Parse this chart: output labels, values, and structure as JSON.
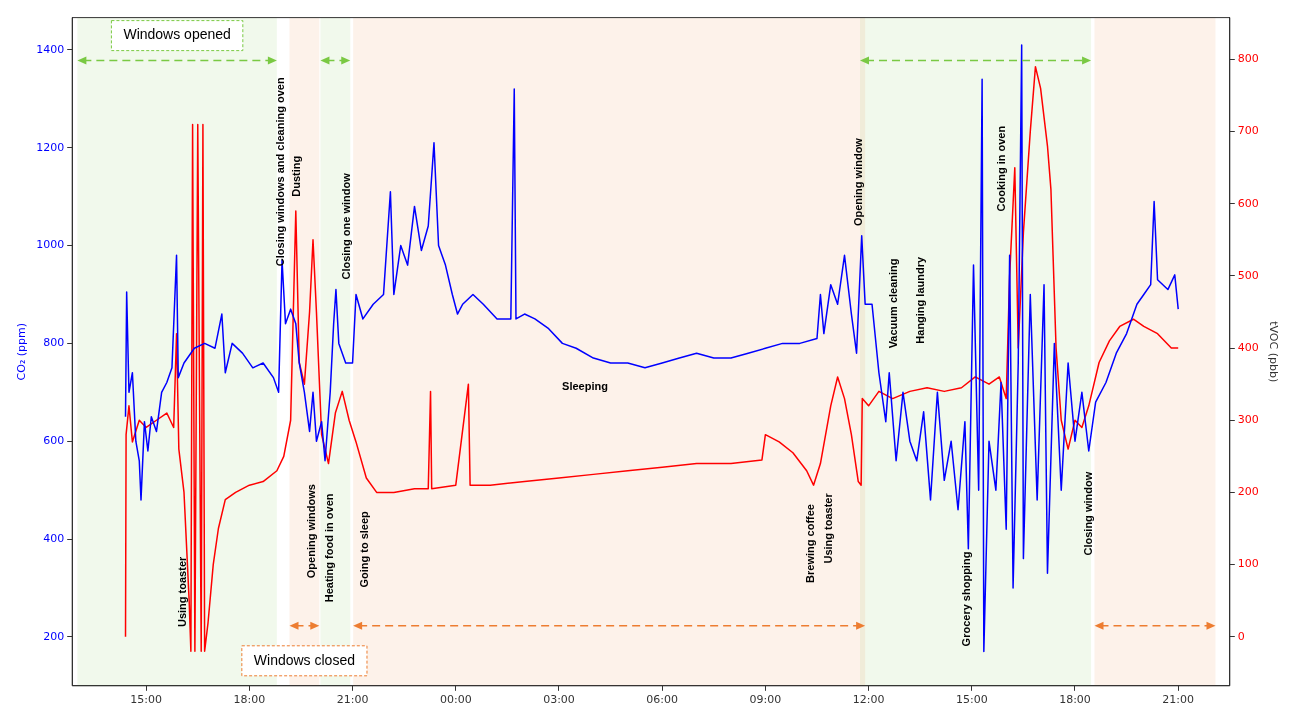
{
  "chart_data": {
    "type": "line",
    "ylabel": "CO₂ (ppm)",
    "y2label": "tVOC (pbb)",
    "xlim": [
      "--01-01T12:51",
      "--01-02T22:30"
    ],
    "xticks": [
      {
        "value": "--01-01T15:00",
        "label": "15:00"
      },
      {
        "value": "--01-01T18:00",
        "label": "18:00"
      },
      {
        "value": "--01-01T21:00",
        "label": "21:00"
      },
      {
        "value": "--01-02T00:00",
        "label": "00:00"
      },
      {
        "value": "--01-02T03:00",
        "label": "03:00"
      },
      {
        "value": "--01-02T06:00",
        "label": "06:00"
      },
      {
        "value": "--01-02T09:00",
        "label": "09:00"
      },
      {
        "value": "--01-02T12:00",
        "label": "12:00"
      },
      {
        "value": "--01-02T15:00",
        "label": "15:00"
      },
      {
        "value": "--01-02T18:00",
        "label": "18:00"
      },
      {
        "value": "--01-02T21:00",
        "label": "21:00"
      }
    ],
    "ylim": [
      100,
      1466
    ],
    "yticks": [
      200,
      400,
      600,
      800,
      1000,
      1200,
      1400
    ],
    "y2lim": [
      -68,
      858
    ],
    "y2ticks": [
      0,
      100,
      200,
      300,
      400,
      500,
      600,
      700,
      800
    ],
    "grid": false,
    "legend": false,
    "series": [
      {
        "color": "#0000ff",
        "x": [
          "--01-01T14:24",
          "--01-01T14:26",
          "--01-01T14:30",
          "--01-01T14:36",
          "--01-01T14:42",
          "--01-01T14:48",
          "--01-01T14:51",
          "--01-01T14:57",
          "--01-01T15:03",
          "--01-01T15:09",
          "--01-01T15:18",
          "--01-01T15:27",
          "--01-01T15:36",
          "--01-01T15:45",
          "--01-01T15:53",
          "--01-01T15:56",
          "--01-01T16:06",
          "--01-01T16:24",
          "--01-01T16:42",
          "--01-01T17:00",
          "--01-01T17:12",
          "--01-01T17:18",
          "--01-01T17:30",
          "--01-01T17:48",
          "--01-01T18:06",
          "--01-01T18:24",
          "--01-01T18:42",
          "--01-01T18:51",
          "--01-01T18:57",
          "--01-01T19:03",
          "--01-01T19:12",
          "--01-01T19:21",
          "--01-01T19:27",
          "--01-01T19:36",
          "--01-01T19:45",
          "--01-01T19:51",
          "--01-01T19:57",
          "--01-01T20:06",
          "--01-01T20:12",
          "--01-01T20:21",
          "--01-01T20:27",
          "--01-01T20:31",
          "--01-01T20:36",
          "--01-01T20:48",
          "--01-01T21:00",
          "--01-01T21:06",
          "--01-01T21:18",
          "--01-01T21:36",
          "--01-01T21:54",
          "--01-01T22:06",
          "--01-01T22:12",
          "--01-01T22:24",
          "--01-01T22:36",
          "--01-01T22:48",
          "--01-01T23:00",
          "--01-01T23:12",
          "--01-01T23:22",
          "--01-01T23:30",
          "--01-01T23:42",
          "--01-01T23:54",
          "--01-02T00:03",
          "--01-02T00:12",
          "--01-02T00:30",
          "--01-02T00:48",
          "--01-02T01:12",
          "--01-02T01:36",
          "--01-02T01:42",
          "--01-02T01:45",
          "--01-02T02:00",
          "--01-02T02:18",
          "--01-02T02:42",
          "--01-02T03:06",
          "--01-02T03:30",
          "--01-02T04:00",
          "--01-02T04:30",
          "--01-02T05:00",
          "--01-02T05:30",
          "--01-02T06:00",
          "--01-02T06:30",
          "--01-02T07:00",
          "--01-02T07:30",
          "--01-02T08:00",
          "--01-02T08:30",
          "--01-02T09:00",
          "--01-02T09:30",
          "--01-02T10:00",
          "--01-02T10:30",
          "--01-02T10:36",
          "--01-02T10:42",
          "--01-02T10:54",
          "--01-02T11:06",
          "--01-02T11:18",
          "--01-02T11:30",
          "--01-02T11:39",
          "--01-02T11:48",
          "--01-02T11:54",
          "--01-02T12:06",
          "--01-02T12:18",
          "--01-02T12:30",
          "--01-02T12:36",
          "--01-02T12:48",
          "--01-02T13:00",
          "--01-02T13:12",
          "--01-02T13:24",
          "--01-02T13:36",
          "--01-02T13:48",
          "--01-02T14:00",
          "--01-02T14:12",
          "--01-02T14:24",
          "--01-02T14:36",
          "--01-02T14:48",
          "--01-02T14:54",
          "--01-02T15:03",
          "--01-02T15:12",
          "--01-02T15:18",
          "--01-02T15:21",
          "--01-02T15:30",
          "--01-02T15:42",
          "--01-02T15:51",
          "--01-02T16:00",
          "--01-02T16:06",
          "--01-02T16:12",
          "--01-02T16:21",
          "--01-02T16:27",
          "--01-02T16:30",
          "--01-02T16:42",
          "--01-02T16:54",
          "--01-02T17:06",
          "--01-02T17:12",
          "--01-02T17:24",
          "--01-02T17:36",
          "--01-02T17:48",
          "--01-02T18:00",
          "--01-02T18:12",
          "--01-02T18:24",
          "--01-02T18:36",
          "--01-02T18:54",
          "--01-02T19:12",
          "--01-02T19:30",
          "--01-02T19:48",
          "--01-02T20:00",
          "--01-02T20:12",
          "--01-02T20:18",
          "--01-02T20:24",
          "--01-02T20:42",
          "--01-02T20:54",
          "--01-02T21:00"
        ],
        "values": [
          650,
          905,
          700,
          740,
          600,
          560,
          480,
          640,
          580,
          650,
          620,
          700,
          720,
          750,
          980,
          730,
          760,
          790,
          800,
          790,
          860,
          740,
          800,
          780,
          750,
          760,
          730,
          700,
          970,
          840,
          870,
          840,
          760,
          700,
          620,
          700,
          600,
          640,
          560,
          700,
          840,
          910,
          800,
          760,
          760,
          900,
          850,
          880,
          900,
          1110,
          900,
          1000,
          960,
          1080,
          990,
          1040,
          1210,
          1000,
          960,
          900,
          860,
          880,
          900,
          880,
          850,
          850,
          1320,
          850,
          860,
          850,
          830,
          800,
          790,
          770,
          760,
          760,
          750,
          760,
          770,
          780,
          770,
          770,
          780,
          790,
          800,
          800,
          810,
          900,
          820,
          920,
          880,
          980,
          860,
          780,
          1020,
          880,
          880,
          740,
          640,
          740,
          560,
          700,
          600,
          560,
          660,
          480,
          700,
          520,
          600,
          460,
          640,
          380,
          960,
          500,
          1340,
          170,
          600,
          500,
          720,
          420,
          980,
          300,
          760,
          1410,
          360,
          900,
          480,
          920,
          330,
          800,
          500,
          760,
          600,
          700,
          580,
          680,
          720,
          780,
          820,
          880,
          900,
          920,
          1090,
          930,
          910,
          940,
          870
        ]
      },
      {
        "color": "#ff0000",
        "axis": "y2",
        "x": [
          "--01-01T14:24",
          "--01-01T14:25",
          "--01-01T14:30",
          "--01-01T14:36",
          "--01-01T14:48",
          "--01-01T15:00",
          "--01-01T15:18",
          "--01-01T15:36",
          "--01-01T15:48",
          "--01-01T15:53",
          "--01-01T15:57",
          "--01-01T16:06",
          "--01-01T16:15",
          "--01-01T16:18",
          "--01-01T16:21",
          "--01-01T16:25",
          "--01-01T16:30",
          "--01-01T16:36",
          "--01-01T16:39",
          "--01-01T16:42",
          "--01-01T16:48",
          "--01-01T16:57",
          "--01-01T17:06",
          "--01-01T17:18",
          "--01-01T17:36",
          "--01-01T18:00",
          "--01-01T18:24",
          "--01-01T18:48",
          "--01-01T19:00",
          "--01-01T19:12",
          "--01-01T19:21",
          "--01-01T19:27",
          "--01-01T19:36",
          "--01-01T19:45",
          "--01-01T19:51",
          "--01-01T19:57",
          "--01-01T20:06",
          "--01-01T20:18",
          "--01-01T20:30",
          "--01-01T20:42",
          "--01-01T20:54",
          "--01-01T21:06",
          "--01-01T21:24",
          "--01-01T21:42",
          "--01-01T22:12",
          "--01-01T22:48",
          "--01-01T23:12",
          "--01-01T23:16",
          "--01-01T23:18",
          "--01-02T00:00",
          "--01-02T00:22",
          "--01-02T00:25",
          "--01-02T01:00",
          "--01-02T02:00",
          "--01-02T03:00",
          "--01-02T04:00",
          "--01-02T05:00",
          "--01-02T06:00",
          "--01-02T07:00",
          "--01-02T08:00",
          "--01-02T08:54",
          "--01-02T09:00",
          "--01-02T09:24",
          "--01-02T09:48",
          "--01-02T10:12",
          "--01-02T10:24",
          "--01-02T10:36",
          "--01-02T10:54",
          "--01-02T11:06",
          "--01-02T11:18",
          "--01-02T11:30",
          "--01-02T11:42",
          "--01-02T11:47",
          "--01-02T11:49",
          "--01-02T12:00",
          "--01-02T12:18",
          "--01-02T12:42",
          "--01-02T13:12",
          "--01-02T13:42",
          "--01-02T14:12",
          "--01-02T14:42",
          "--01-02T15:06",
          "--01-02T15:30",
          "--01-02T15:48",
          "--01-02T16:00",
          "--01-02T16:06",
          "--01-02T16:15",
          "--01-02T16:21",
          "--01-02T16:30",
          "--01-02T16:42",
          "--01-02T16:51",
          "--01-02T17:00",
          "--01-02T17:12",
          "--01-02T17:18",
          "--01-02T17:27",
          "--01-02T17:36",
          "--01-02T17:48",
          "--01-02T18:00",
          "--01-02T18:12",
          "--01-02T18:24",
          "--01-02T18:42",
          "--01-02T19:00",
          "--01-02T19:18",
          "--01-02T19:42",
          "--01-02T20:00",
          "--01-02T20:24",
          "--01-02T20:48",
          "--01-02T21:00"
        ],
        "values": [
          0,
          280,
          320,
          270,
          300,
          290,
          300,
          310,
          290,
          420,
          260,
          200,
          50,
          -20,
          710,
          -20,
          710,
          -20,
          710,
          -20,
          20,
          100,
          150,
          190,
          200,
          210,
          215,
          230,
          250,
          300,
          590,
          380,
          350,
          450,
          550,
          450,
          280,
          240,
          310,
          340,
          300,
          270,
          220,
          200,
          200,
          205,
          205,
          340,
          205,
          210,
          350,
          210,
          210,
          215,
          220,
          225,
          230,
          235,
          240,
          240,
          245,
          280,
          270,
          255,
          230,
          210,
          240,
          320,
          360,
          330,
          280,
          215,
          210,
          330,
          320,
          340,
          330,
          340,
          345,
          340,
          345,
          360,
          350,
          360,
          330,
          500,
          650,
          400,
          560,
          700,
          790,
          760,
          680,
          620,
          400,
          300,
          260,
          300,
          290,
          320,
          380,
          410,
          430,
          440,
          430,
          420,
          400,
          400
        ]
      }
    ],
    "bands": [
      {
        "axis": "x",
        "from": "--01-01T13:00",
        "to": "--01-01T18:48",
        "label": "Windows opened",
        "color": "#7ac943"
      },
      {
        "axis": "x",
        "from": "--01-01T20:04",
        "to": "--01-01T20:56",
        "color": "#7ac943"
      },
      {
        "axis": "x",
        "from": "--01-02T11:45",
        "to": "--01-02T18:28",
        "color": "#7ac943"
      },
      {
        "axis": "x",
        "from": "--01-01T19:10",
        "to": "--01-01T20:02",
        "label": "Windows closed",
        "color": "#ed7d31"
      },
      {
        "axis": "x",
        "from": "--01-01T21:01",
        "to": "--01-02T11:54",
        "color": "#ed7d31"
      },
      {
        "axis": "x",
        "from": "--01-02T18:34",
        "to": "--01-02T22:05",
        "color": "#ed7d31"
      }
    ],
    "annotations": [
      "Using toaster",
      "Closing windows and cleaning oven",
      "Dusting",
      "Opening windows",
      "Heating food in oven",
      "Closing one window",
      "Going to sleep",
      "Sleeping",
      "Brewing coffee",
      "Using toaster",
      "Opening window",
      "Vacuum cleaning",
      "Hanging laundry",
      "Grocery shopping",
      "Cooking in oven",
      "Closing window"
    ]
  }
}
